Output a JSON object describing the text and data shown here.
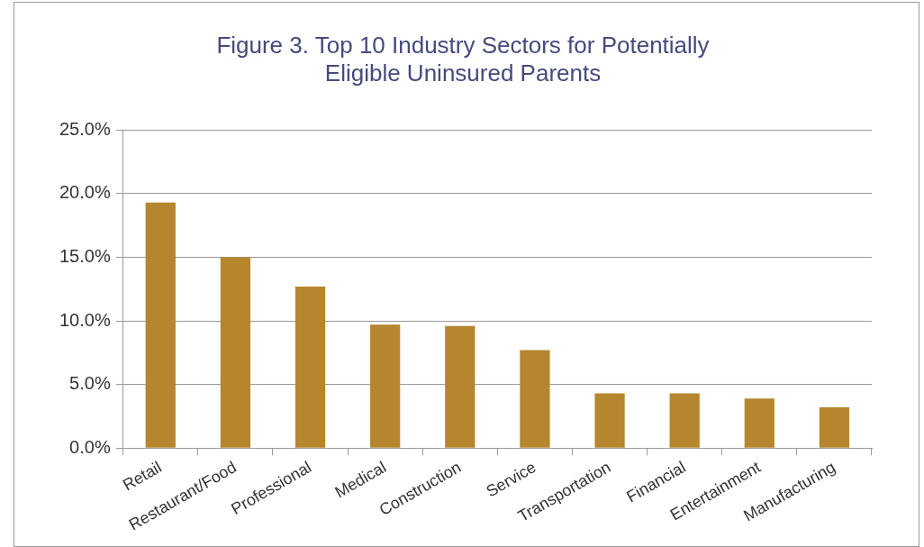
{
  "chart_data": {
    "type": "bar",
    "title": "Figure 3. Top 10 Industry Sectors for Potentially\nEligible Uninsured Parents",
    "categories": [
      "Retail",
      "Restaurant/Food",
      "Professional",
      "Medical",
      "Construction",
      "Service",
      "Transportation",
      "Financial",
      "Entertainment",
      "Manufacturing"
    ],
    "values": [
      19.3,
      15.0,
      12.7,
      9.7,
      9.6,
      7.7,
      4.3,
      4.3,
      3.9,
      3.2
    ],
    "color": "#b5862e",
    "ylim": [
      0,
      25
    ],
    "yticks": [
      {
        "value": 0,
        "label": "0.0%"
      },
      {
        "value": 5,
        "label": "5.0%"
      },
      {
        "value": 10,
        "label": "10.0%"
      },
      {
        "value": 15,
        "label": "15.0%"
      },
      {
        "value": 20,
        "label": "20.0%"
      },
      {
        "value": 25,
        "label": "25.0%"
      }
    ],
    "grid": "y"
  }
}
